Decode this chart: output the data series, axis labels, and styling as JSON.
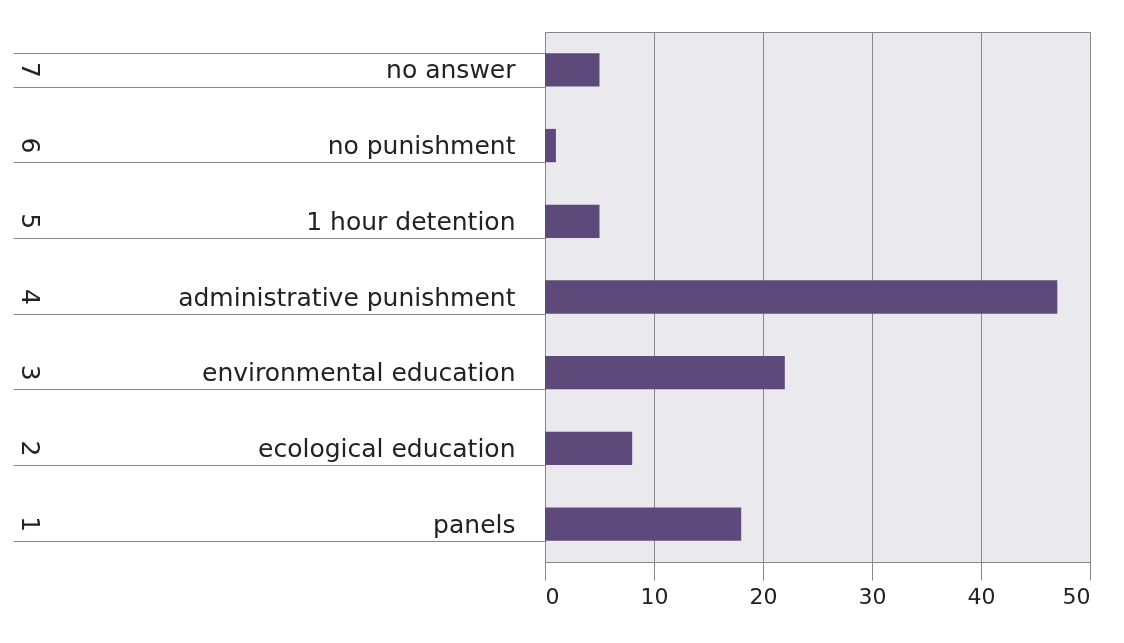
{
  "chart_data": {
    "type": "bar",
    "orientation": "horizontal",
    "categories": [
      "no answer",
      "no punishment",
      "1 hour detention",
      "administrative punishment",
      "environmental education",
      "ecological education",
      "panels"
    ],
    "values": [
      5,
      1,
      5,
      47,
      22,
      8,
      18
    ],
    "color": "#5e4a7a",
    "xlim": [
      0,
      50
    ],
    "xticks": [
      0,
      10,
      20,
      30,
      40,
      50
    ],
    "grid": "x",
    "annotations": [
      "7",
      "6",
      "5",
      "4",
      "3",
      "2",
      "1"
    ]
  }
}
